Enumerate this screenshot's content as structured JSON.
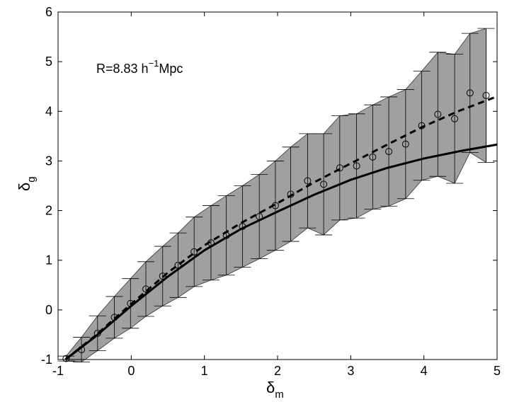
{
  "chart_data": {
    "type": "errorbar",
    "annotation": [
      "R=8.83 h",
      "−1",
      "Mpc"
    ],
    "xlabel": [
      "δ",
      "m"
    ],
    "ylabel": [
      "δ",
      "g"
    ],
    "xlim": [
      -1,
      5
    ],
    "ylim": [
      -1,
      6
    ],
    "xticks": [
      -1,
      0,
      1,
      2,
      3,
      4,
      5
    ],
    "yticks": [
      -1,
      0,
      1,
      2,
      3,
      4,
      5,
      6
    ],
    "band_color": "#a0a0a0",
    "points": {
      "x": [
        -0.89,
        -0.68,
        -0.46,
        -0.23,
        -0.01,
        0.2,
        0.43,
        0.64,
        0.86,
        1.09,
        1.3,
        1.52,
        1.75,
        1.97,
        2.18,
        2.41,
        2.63,
        2.85,
        3.08,
        3.3,
        3.52,
        3.75,
        3.97,
        4.19,
        4.42,
        4.63,
        4.85
      ],
      "values": [
        -0.98,
        -0.8,
        -0.47,
        -0.15,
        0.13,
        0.42,
        0.68,
        0.9,
        1.17,
        1.35,
        1.5,
        1.68,
        1.88,
        2.1,
        2.33,
        2.6,
        2.53,
        2.86,
        2.9,
        3.08,
        3.19,
        3.34,
        3.71,
        3.94,
        3.85,
        4.37,
        4.32
      ],
      "errors": [
        0.05,
        0.25,
        0.35,
        0.42,
        0.5,
        0.55,
        0.6,
        0.65,
        0.7,
        0.75,
        0.8,
        0.82,
        0.85,
        0.9,
        0.95,
        0.95,
        1.02,
        1.05,
        1.05,
        1.05,
        1.1,
        1.1,
        1.1,
        1.25,
        1.3,
        1.2,
        1.35
      ]
    },
    "lines": [
      {
        "style": "solid",
        "x": [
          -0.9,
          -0.5,
          0,
          0.5,
          1,
          1.5,
          2,
          2.5,
          3,
          3.5,
          4,
          4.5,
          5
        ],
        "values": [
          -1,
          -0.55,
          0.08,
          0.67,
          1.2,
          1.63,
          1.98,
          2.32,
          2.62,
          2.86,
          3.05,
          3.2,
          3.33
        ]
      },
      {
        "style": "dashed",
        "x": [
          -0.9,
          -0.5,
          0,
          0.5,
          1,
          1.5,
          2,
          2.5,
          3,
          3.5,
          4,
          4.5,
          5
        ],
        "values": [
          -1,
          -0.53,
          0.12,
          0.75,
          1.3,
          1.75,
          2.15,
          2.57,
          2.95,
          3.33,
          3.7,
          4.02,
          4.3
        ]
      }
    ]
  }
}
